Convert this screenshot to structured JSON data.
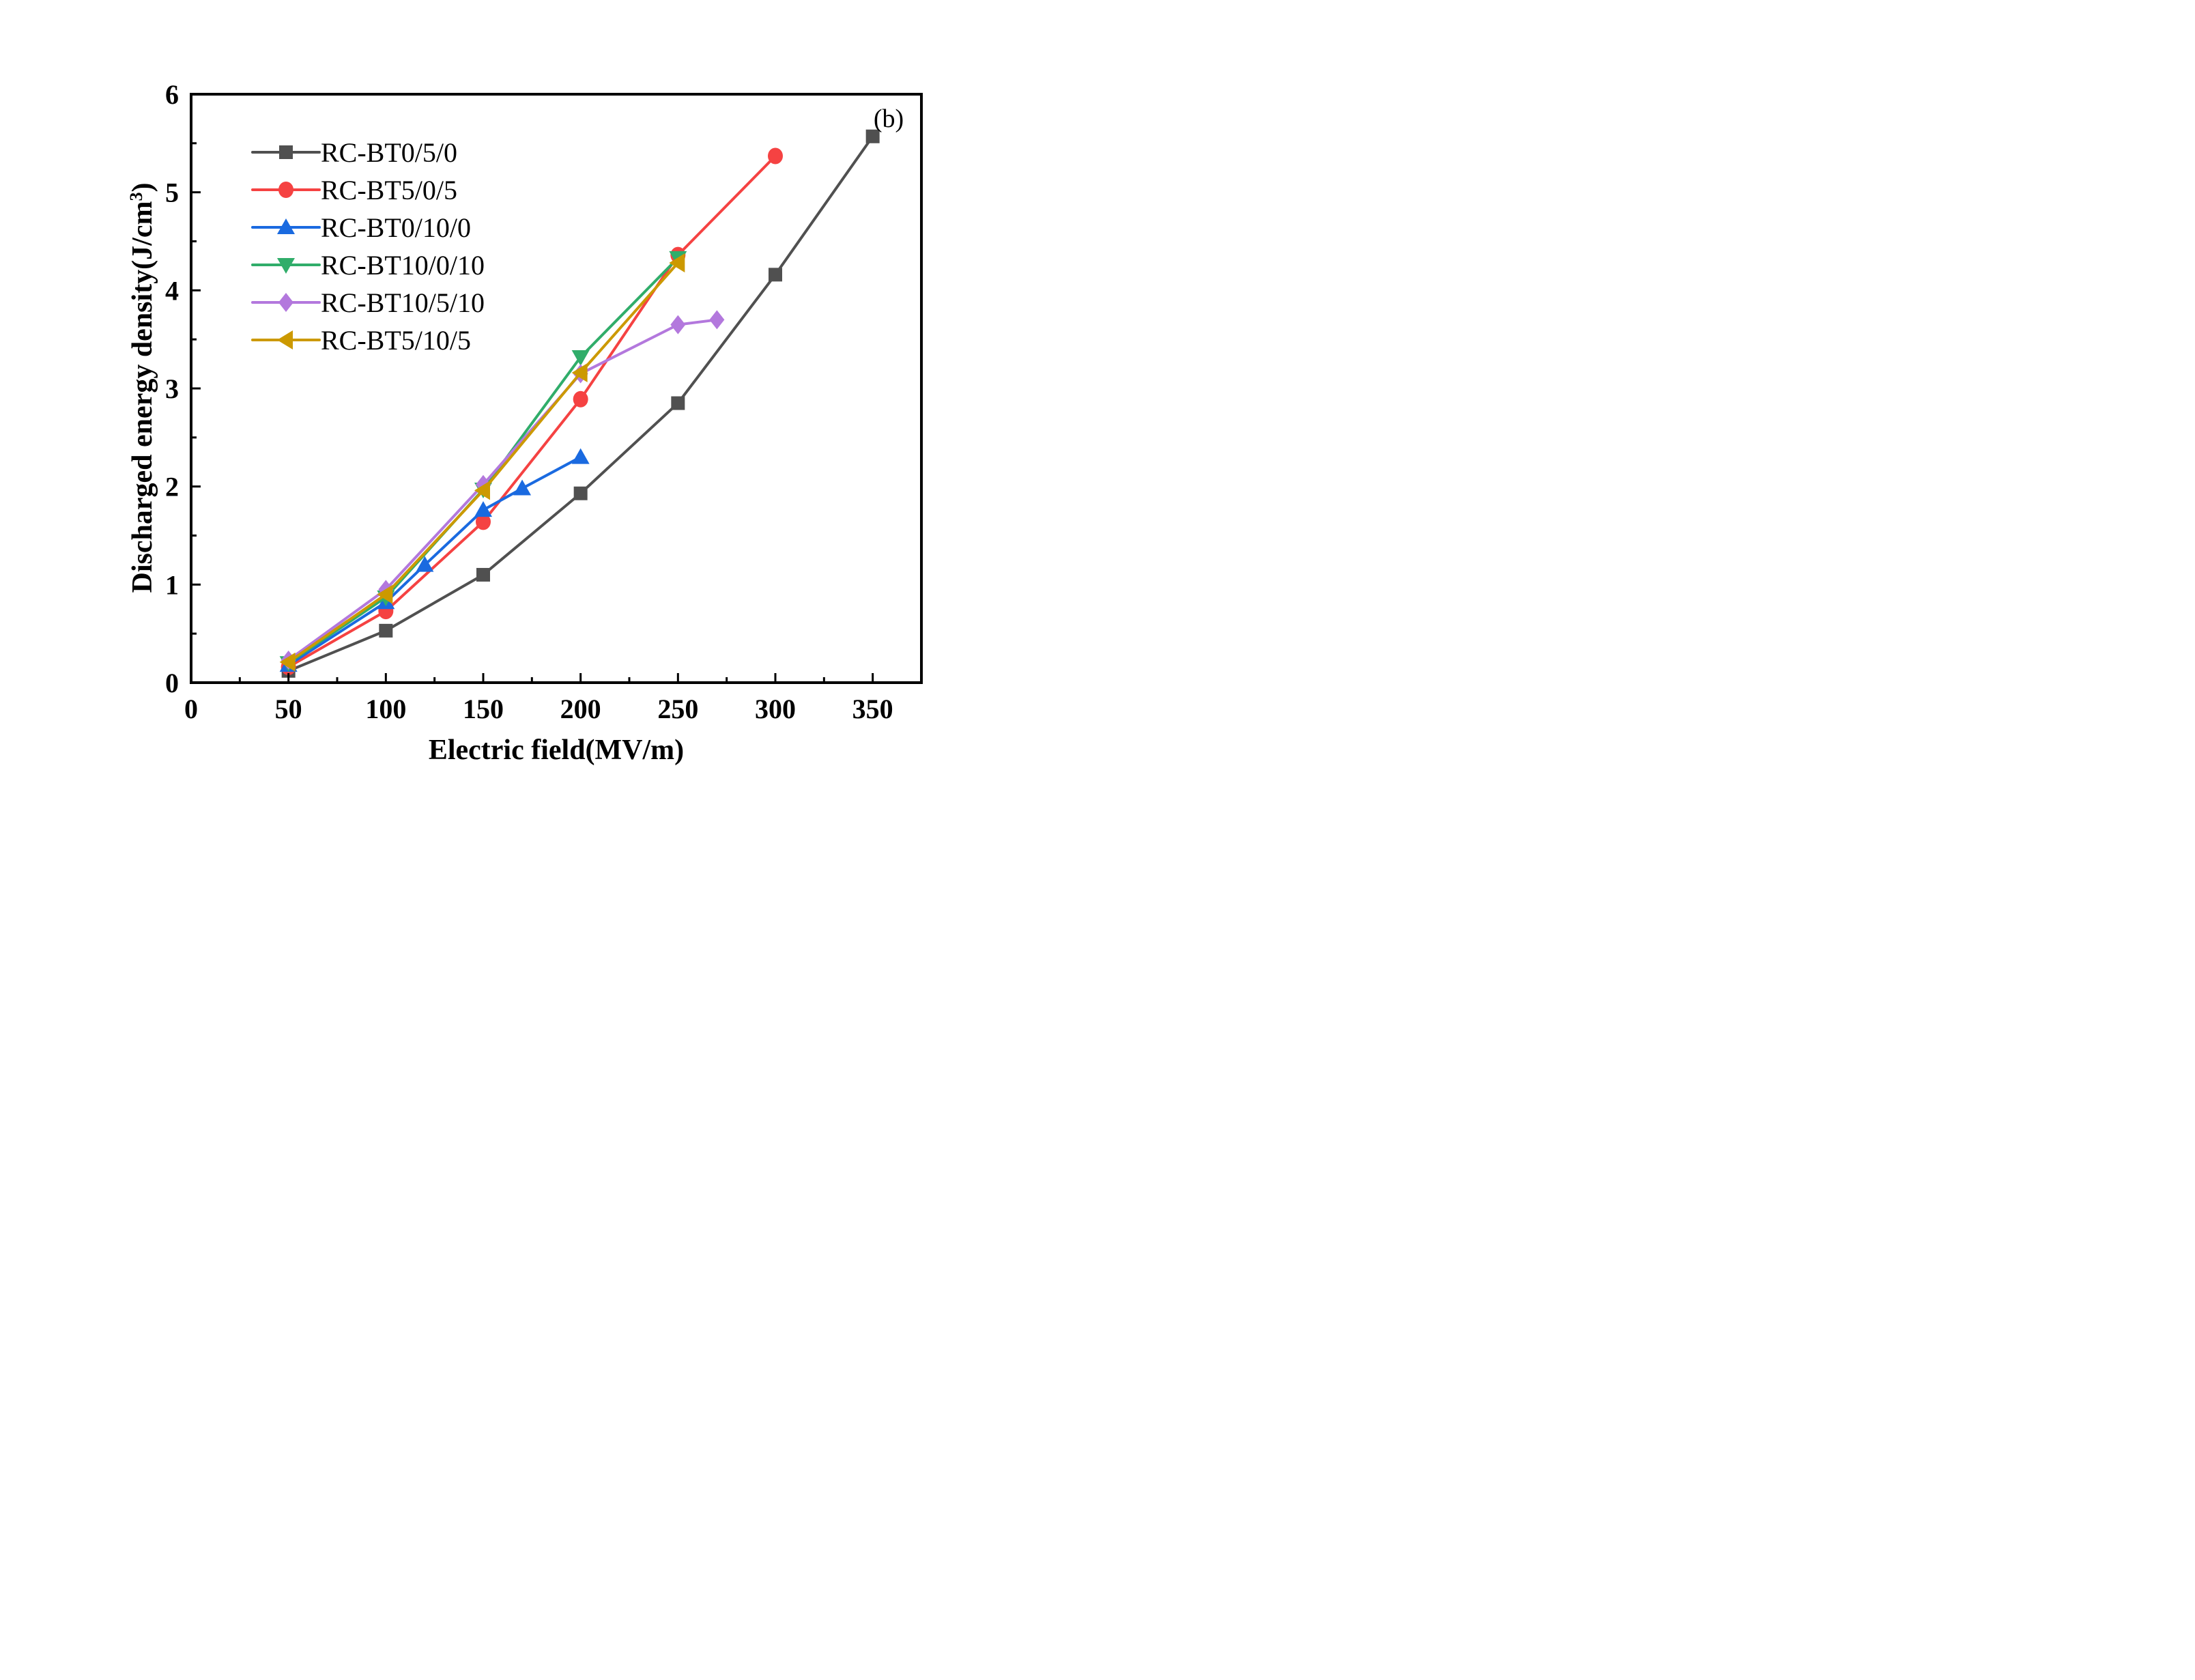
{
  "chart_data": {
    "type": "line",
    "title": "",
    "annotation": "(b)",
    "xlabel": "Electric field(MV/m)",
    "ylabel": "Discharged energy density(J/cm",
    "ylabel_superscript": "3",
    "ylabel_suffix": ")",
    "xlim": [
      0,
      375
    ],
    "ylim": [
      0,
      6
    ],
    "xticks": [
      0,
      50,
      100,
      150,
      200,
      250,
      300,
      350
    ],
    "yticks": [
      0,
      1,
      2,
      3,
      4,
      5,
      6
    ],
    "xtick_labels": [
      "0",
      "50",
      "100",
      "150",
      "200",
      "250",
      "300",
      "350"
    ],
    "ytick_labels": [
      "0",
      "1",
      "2",
      "3",
      "4",
      "5",
      "6"
    ],
    "grid": false,
    "legend_position": "top-left",
    "series": [
      {
        "name": "RC-BT0/5/0",
        "color": "#505050",
        "marker": "square",
        "x": [
          50,
          100,
          150,
          200,
          250,
          300,
          350
        ],
        "y": [
          0.12,
          0.53,
          1.1,
          1.93,
          2.85,
          4.16,
          5.57
        ]
      },
      {
        "name": "RC-BT5/0/5",
        "color": "#f54242",
        "marker": "circle",
        "x": [
          50,
          100,
          150,
          200,
          250,
          300
        ],
        "y": [
          0.16,
          0.73,
          1.64,
          2.89,
          4.36,
          5.37
        ]
      },
      {
        "name": "RC-BT0/10/0",
        "color": "#1a6ae0",
        "marker": "triangle-up",
        "x": [
          50,
          100,
          120,
          150,
          170,
          200
        ],
        "y": [
          0.18,
          0.82,
          1.2,
          1.76,
          1.98,
          2.3
        ]
      },
      {
        "name": "RC-BT10/0/10",
        "color": "#30ad6a",
        "marker": "triangle-down",
        "x": [
          50,
          100,
          150,
          200,
          250
        ],
        "y": [
          0.2,
          0.87,
          1.97,
          3.32,
          4.33
        ]
      },
      {
        "name": "RC-BT10/5/10",
        "color": "#b378dd",
        "marker": "diamond",
        "x": [
          50,
          100,
          150,
          200,
          250,
          270
        ],
        "y": [
          0.23,
          0.95,
          2.02,
          3.15,
          3.65,
          3.7
        ]
      },
      {
        "name": "RC-BT5/10/5",
        "color": "#cc9900",
        "marker": "triangle-left",
        "x": [
          50,
          100,
          150,
          200,
          250
        ],
        "y": [
          0.21,
          0.9,
          1.96,
          3.16,
          4.28
        ]
      }
    ]
  }
}
